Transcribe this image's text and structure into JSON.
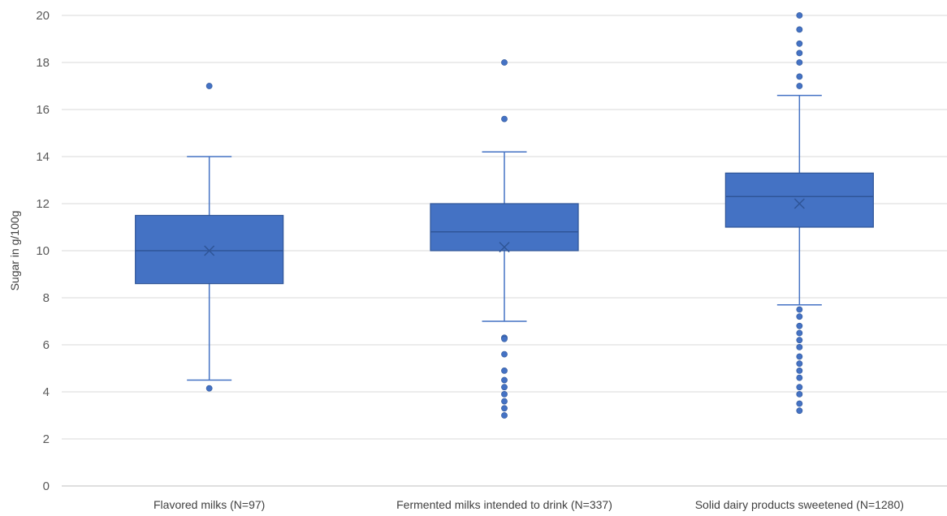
{
  "chart_data": {
    "type": "boxplot",
    "ylabel": "Sugar in g/100g",
    "ylim": [
      0,
      20
    ],
    "yticks": [
      0,
      2,
      4,
      6,
      8,
      10,
      12,
      14,
      16,
      18,
      20
    ],
    "grid": true,
    "color": "#4472C4",
    "edge_color": "#2F5597",
    "categories": [
      "Flavored milks (N=97)",
      "Fermented milks intended to drink (N=337)",
      "Solid dairy products sweetened (N=1280)"
    ],
    "boxes": [
      {
        "whisker_low": 4.5,
        "q1": 8.6,
        "median": 10.0,
        "q3": 11.5,
        "whisker_high": 14.0,
        "mean": 10.0,
        "outliers": [
          17.0,
          4.15
        ]
      },
      {
        "whisker_low": 7.0,
        "q1": 10.0,
        "median": 10.8,
        "q3": 12.0,
        "whisker_high": 14.2,
        "mean": 10.15,
        "outliers": [
          18.0,
          15.6,
          6.3,
          6.25,
          5.6,
          4.9,
          4.5,
          4.2,
          3.9,
          3.6,
          3.3,
          3.0
        ]
      },
      {
        "whisker_low": 7.7,
        "q1": 11.0,
        "median": 12.3,
        "q3": 13.3,
        "whisker_high": 16.6,
        "mean": 12.0,
        "outliers": [
          20.0,
          19.4,
          18.8,
          18.4,
          18.0,
          17.4,
          17.0,
          7.5,
          7.2,
          6.8,
          6.5,
          6.2,
          5.9,
          5.5,
          5.2,
          4.9,
          4.6,
          4.2,
          3.9,
          3.5,
          3.2
        ]
      }
    ]
  }
}
